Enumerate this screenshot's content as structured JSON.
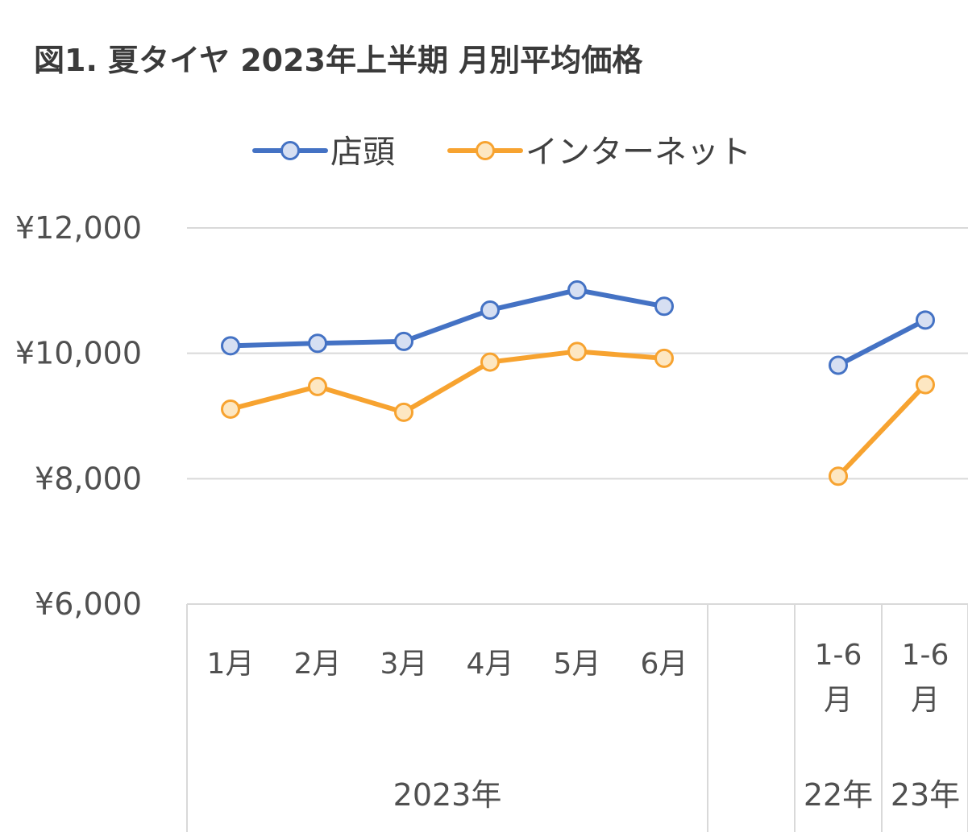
{
  "chart_data": {
    "type": "line",
    "title": "図1. 夏タイヤ 2023年上半期 月別平均価格",
    "ylim": [
      6000,
      12000
    ],
    "yticks": [
      "¥12,000",
      "¥10,000",
      "¥8,000",
      "¥6,000"
    ],
    "ytick_values": [
      12000,
      10000,
      8000,
      6000
    ],
    "grid": true,
    "legend_position": "top",
    "categories": [
      {
        "label": "1月"
      },
      {
        "label": "2月"
      },
      {
        "label": "3月"
      },
      {
        "label": "4月"
      },
      {
        "label": "5月"
      },
      {
        "label": "6月"
      },
      {
        "label": ""
      },
      {
        "label": [
          "1-6",
          "月"
        ]
      },
      {
        "label": [
          "1-6",
          "月"
        ]
      }
    ],
    "groups": [
      {
        "label": "2023年",
        "span": [
          0,
          6
        ]
      },
      {
        "label": "22年",
        "span": [
          7,
          7
        ]
      },
      {
        "label": "23年",
        "span": [
          8,
          8
        ]
      }
    ],
    "series": [
      {
        "name": "店頭",
        "color": "#4472C4",
        "fill": "#D6DFF2",
        "values": [
          10120,
          10160,
          10190,
          10690,
          11010,
          10750,
          null,
          9810,
          10530
        ]
      },
      {
        "name": "インターネット",
        "color": "#F7A330",
        "fill": "#FDE7C2",
        "values": [
          9110,
          9470,
          9060,
          9860,
          10030,
          9920,
          null,
          8040,
          9500
        ]
      }
    ]
  }
}
